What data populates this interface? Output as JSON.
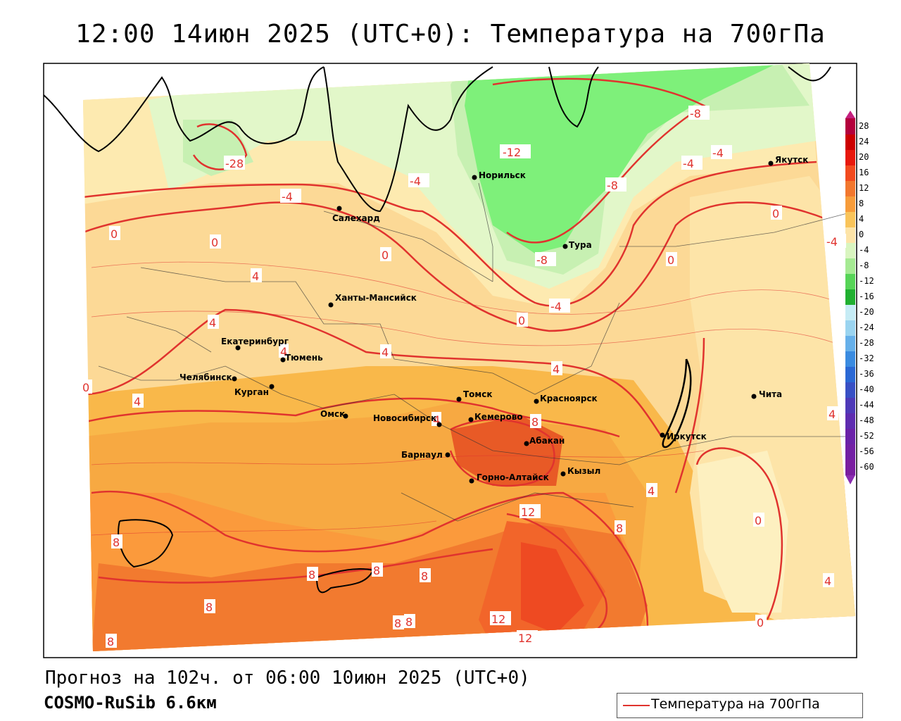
{
  "title": "12:00 14июн 2025 (UTC+0): Температура на 700гПа",
  "footer": {
    "forecast": "Прогноз на 102ч. от 06:00 10июн 2025 (UTC+0)",
    "model": "COSMO-RuSib 6.6км"
  },
  "legend": {
    "label": "Температура на 700гПа",
    "color": "#e0332e"
  },
  "colorbar": {
    "labels": [
      "28",
      "24",
      "20",
      "16",
      "12",
      "8",
      "4",
      "0",
      "-4",
      "-8",
      "-12",
      "-16",
      "-20",
      "-24",
      "-28",
      "-32",
      "-36",
      "-40",
      "-44",
      "-48",
      "-52",
      "-56",
      "-60"
    ]
  },
  "cities": [
    {
      "name": "Норильск"
    },
    {
      "name": "Якутск"
    },
    {
      "name": "Салехард"
    },
    {
      "name": "Тура"
    },
    {
      "name": "Ханты-Мансийск"
    },
    {
      "name": "Екатеринбург"
    },
    {
      "name": "Тюмень"
    },
    {
      "name": "Челябинск"
    },
    {
      "name": "Курган"
    },
    {
      "name": "Омск"
    },
    {
      "name": "Новосибирск"
    },
    {
      "name": "Томск"
    },
    {
      "name": "Кемерово"
    },
    {
      "name": "Красноярск"
    },
    {
      "name": "Барнаул"
    },
    {
      "name": "Абакан"
    },
    {
      "name": "Горно-Алтайск"
    },
    {
      "name": "Кызыл"
    },
    {
      "name": "Иркутск"
    },
    {
      "name": "Чита"
    }
  ],
  "isotherm_labels": [
    "-28",
    "-4",
    "-4",
    "-12",
    "-8",
    "-8",
    "-4",
    "-4",
    "0",
    "0",
    "-4",
    "-8",
    "-4",
    "0",
    "0",
    "0",
    "0",
    "4",
    "4",
    "4",
    "0",
    "4",
    "4",
    "4",
    "4",
    "8",
    "8",
    "8",
    "8",
    "8",
    "8",
    "8",
    "8",
    "12",
    "12",
    "12",
    "8",
    "0",
    "4",
    "0",
    "8",
    "4",
    "4"
  ],
  "colors": {
    "isotherm": "#e0332e",
    "land_border": "#000000"
  }
}
